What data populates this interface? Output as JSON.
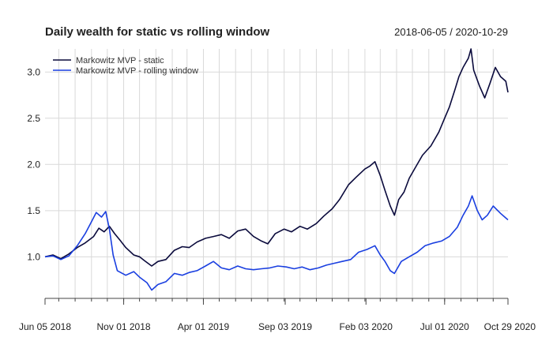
{
  "chart_data": {
    "type": "line",
    "title": "Daily wealth for static vs rolling window",
    "date_range_label": "2018-06-05 / 2020-10-29",
    "xlabel": "",
    "ylabel": "",
    "x_range": [
      "2018-06-05",
      "2020-10-29"
    ],
    "ylim": [
      0.55,
      3.25
    ],
    "y_ticks": [
      1.0,
      1.5,
      2.0,
      2.5,
      3.0
    ],
    "y_tick_labels": [
      "1.0",
      "1.5",
      "2.0",
      "2.5",
      "3.0"
    ],
    "x_ticks": [
      {
        "date": "2018-06-05",
        "label": "Jun 05 2018"
      },
      {
        "date": "2018-11-01",
        "label": "Nov 01 2018"
      },
      {
        "date": "2019-04-01",
        "label": "Apr 01 2019"
      },
      {
        "date": "2019-09-03",
        "label": "Sep 03 2019"
      },
      {
        "date": "2020-02-03",
        "label": "Feb 03 2020"
      },
      {
        "date": "2020-07-01",
        "label": "Jul 01 2020"
      },
      {
        "date": "2020-10-29",
        "label": "Oct 29 2020"
      }
    ],
    "grid": true,
    "legend_position": "top-left",
    "series": [
      {
        "name": "Markowitz MVP - static",
        "color": "#0a0a3c",
        "points": [
          [
            "2018-06-05",
            1.0
          ],
          [
            "2018-06-20",
            1.02
          ],
          [
            "2018-07-05",
            0.98
          ],
          [
            "2018-07-20",
            1.03
          ],
          [
            "2018-08-05",
            1.1
          ],
          [
            "2018-08-20",
            1.15
          ],
          [
            "2018-09-05",
            1.22
          ],
          [
            "2018-09-15",
            1.31
          ],
          [
            "2018-09-25",
            1.27
          ],
          [
            "2018-10-05",
            1.33
          ],
          [
            "2018-10-15",
            1.25
          ],
          [
            "2018-10-25",
            1.18
          ],
          [
            "2018-11-05",
            1.1
          ],
          [
            "2018-11-20",
            1.02
          ],
          [
            "2018-12-01",
            1.0
          ],
          [
            "2018-12-10",
            0.96
          ],
          [
            "2018-12-24",
            0.9
          ],
          [
            "2019-01-05",
            0.95
          ],
          [
            "2019-01-20",
            0.97
          ],
          [
            "2019-02-05",
            1.07
          ],
          [
            "2019-02-20",
            1.11
          ],
          [
            "2019-03-05",
            1.1
          ],
          [
            "2019-03-20",
            1.16
          ],
          [
            "2019-04-05",
            1.2
          ],
          [
            "2019-04-20",
            1.22
          ],
          [
            "2019-05-05",
            1.24
          ],
          [
            "2019-05-20",
            1.2
          ],
          [
            "2019-06-05",
            1.28
          ],
          [
            "2019-06-20",
            1.3
          ],
          [
            "2019-07-05",
            1.22
          ],
          [
            "2019-07-20",
            1.17
          ],
          [
            "2019-08-01",
            1.14
          ],
          [
            "2019-08-15",
            1.25
          ],
          [
            "2019-09-01",
            1.3
          ],
          [
            "2019-09-15",
            1.27
          ],
          [
            "2019-10-01",
            1.33
          ],
          [
            "2019-10-15",
            1.3
          ],
          [
            "2019-11-01",
            1.36
          ],
          [
            "2019-11-15",
            1.44
          ],
          [
            "2019-12-01",
            1.52
          ],
          [
            "2019-12-15",
            1.62
          ],
          [
            "2020-01-01",
            1.78
          ],
          [
            "2020-01-15",
            1.86
          ],
          [
            "2020-02-01",
            1.95
          ],
          [
            "2020-02-10",
            1.98
          ],
          [
            "2020-02-20",
            2.03
          ],
          [
            "2020-03-01",
            1.88
          ],
          [
            "2020-03-10",
            1.72
          ],
          [
            "2020-03-20",
            1.55
          ],
          [
            "2020-03-28",
            1.45
          ],
          [
            "2020-04-05",
            1.62
          ],
          [
            "2020-04-15",
            1.7
          ],
          [
            "2020-04-25",
            1.85
          ],
          [
            "2020-05-05",
            1.95
          ],
          [
            "2020-05-20",
            2.1
          ],
          [
            "2020-06-05",
            2.2
          ],
          [
            "2020-06-20",
            2.35
          ],
          [
            "2020-07-01",
            2.5
          ],
          [
            "2020-07-10",
            2.62
          ],
          [
            "2020-07-20",
            2.8
          ],
          [
            "2020-07-28",
            2.95
          ],
          [
            "2020-08-05",
            3.05
          ],
          [
            "2020-08-15",
            3.15
          ],
          [
            "2020-08-20",
            3.25
          ],
          [
            "2020-08-25",
            3.02
          ],
          [
            "2020-09-05",
            2.85
          ],
          [
            "2020-09-15",
            2.72
          ],
          [
            "2020-09-25",
            2.88
          ],
          [
            "2020-10-05",
            3.05
          ],
          [
            "2020-10-15",
            2.95
          ],
          [
            "2020-10-25",
            2.9
          ],
          [
            "2020-10-29",
            2.78
          ]
        ]
      },
      {
        "name": "Markowitz MVP - rolling window",
        "color": "#1a3fe0",
        "points": [
          [
            "2018-06-05",
            1.0
          ],
          [
            "2018-06-20",
            1.01
          ],
          [
            "2018-07-05",
            0.97
          ],
          [
            "2018-07-20",
            1.01
          ],
          [
            "2018-08-05",
            1.12
          ],
          [
            "2018-08-20",
            1.25
          ],
          [
            "2018-09-01",
            1.38
          ],
          [
            "2018-09-10",
            1.48
          ],
          [
            "2018-09-20",
            1.43
          ],
          [
            "2018-09-28",
            1.49
          ],
          [
            "2018-10-05",
            1.3
          ],
          [
            "2018-10-12",
            1.02
          ],
          [
            "2018-10-20",
            0.85
          ],
          [
            "2018-11-05",
            0.8
          ],
          [
            "2018-11-20",
            0.84
          ],
          [
            "2018-12-01",
            0.78
          ],
          [
            "2018-12-15",
            0.72
          ],
          [
            "2018-12-24",
            0.64
          ],
          [
            "2019-01-05",
            0.7
          ],
          [
            "2019-01-20",
            0.73
          ],
          [
            "2019-02-05",
            0.82
          ],
          [
            "2019-02-20",
            0.8
          ],
          [
            "2019-03-05",
            0.83
          ],
          [
            "2019-03-20",
            0.85
          ],
          [
            "2019-04-05",
            0.9
          ],
          [
            "2019-04-20",
            0.95
          ],
          [
            "2019-05-05",
            0.88
          ],
          [
            "2019-05-20",
            0.86
          ],
          [
            "2019-06-05",
            0.9
          ],
          [
            "2019-06-20",
            0.87
          ],
          [
            "2019-07-05",
            0.86
          ],
          [
            "2019-07-20",
            0.87
          ],
          [
            "2019-08-05",
            0.88
          ],
          [
            "2019-08-20",
            0.9
          ],
          [
            "2019-09-05",
            0.89
          ],
          [
            "2019-09-20",
            0.87
          ],
          [
            "2019-10-05",
            0.89
          ],
          [
            "2019-10-20",
            0.86
          ],
          [
            "2019-11-05",
            0.88
          ],
          [
            "2019-11-20",
            0.91
          ],
          [
            "2019-12-05",
            0.93
          ],
          [
            "2019-12-20",
            0.95
          ],
          [
            "2020-01-05",
            0.97
          ],
          [
            "2020-01-20",
            1.05
          ],
          [
            "2020-02-05",
            1.08
          ],
          [
            "2020-02-20",
            1.12
          ],
          [
            "2020-03-01",
            1.02
          ],
          [
            "2020-03-10",
            0.95
          ],
          [
            "2020-03-20",
            0.85
          ],
          [
            "2020-03-28",
            0.82
          ],
          [
            "2020-04-10",
            0.95
          ],
          [
            "2020-04-25",
            1.0
          ],
          [
            "2020-05-10",
            1.05
          ],
          [
            "2020-05-25",
            1.12
          ],
          [
            "2020-06-10",
            1.15
          ],
          [
            "2020-06-25",
            1.17
          ],
          [
            "2020-07-10",
            1.22
          ],
          [
            "2020-07-25",
            1.32
          ],
          [
            "2020-08-05",
            1.45
          ],
          [
            "2020-08-15",
            1.55
          ],
          [
            "2020-08-22",
            1.66
          ],
          [
            "2020-09-01",
            1.5
          ],
          [
            "2020-09-10",
            1.4
          ],
          [
            "2020-09-20",
            1.45
          ],
          [
            "2020-10-01",
            1.55
          ],
          [
            "2020-10-15",
            1.47
          ],
          [
            "2020-10-29",
            1.4
          ]
        ]
      }
    ]
  }
}
